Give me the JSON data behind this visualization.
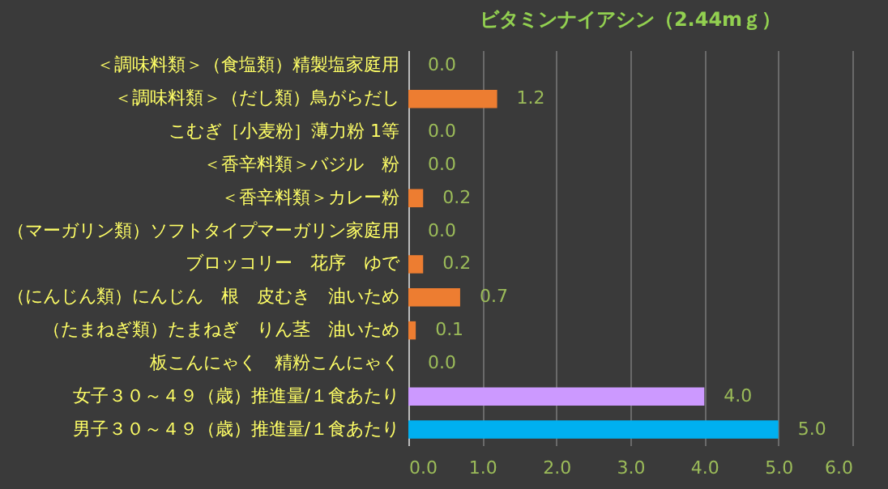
{
  "chart_data": {
    "type": "bar",
    "orientation": "horizontal",
    "title": "ビタミンナイアシン（2.44mｇ）",
    "categories": [
      "＜調味料類＞（食塩類）精製塩家庭用",
      "＜調味料類＞（だし類）鳥がらだし",
      "こむぎ［小麦粉］薄力粉 1等",
      "＜香辛料類＞バジル　粉",
      "＜香辛料類＞カレー粉",
      "（マーガリン類）ソフトタイプマーガリン家庭用",
      "ブロッコリー　花序　ゆで",
      "（にんじん類）にんじん　根　皮むき　油いため",
      "（たまねぎ類）たまねぎ　りん茎　油いため",
      "板こんにゃく　精粉こんにゃく",
      "女子３０～４９（歳）推進量/１食あたり",
      "男子３０～４９（歳）推進量/１食あたり"
    ],
    "values": [
      0,
      1.2,
      0,
      0,
      0.2,
      0,
      0.2,
      0.7,
      0.1,
      0,
      4.0,
      5.0
    ],
    "value_labels": [
      "0.0",
      "1.2",
      "0.0",
      "0.0",
      "0.2",
      "0.0",
      "0.2",
      "0.7",
      "0.1",
      "0.0",
      "4.0",
      "5.0"
    ],
    "colors": [
      "#ed7d31",
      "#ed7d31",
      "#ed7d31",
      "#ed7d31",
      "#ed7d31",
      "#ed7d31",
      "#ed7d31",
      "#ed7d31",
      "#ed7d31",
      "#ed7d31",
      "#cc99ff",
      "#00b0f0"
    ],
    "xlim": [
      0,
      6
    ],
    "xticks": [
      {
        "value": 0,
        "label": "0.0"
      },
      {
        "value": 1,
        "label": "1.0"
      },
      {
        "value": 2,
        "label": "2.0"
      },
      {
        "value": 3,
        "label": "3.0"
      },
      {
        "value": 4,
        "label": "4.0"
      },
      {
        "value": 5,
        "label": "5.0"
      },
      {
        "value": 6,
        "label": "6.0"
      }
    ],
    "grid": "x"
  }
}
